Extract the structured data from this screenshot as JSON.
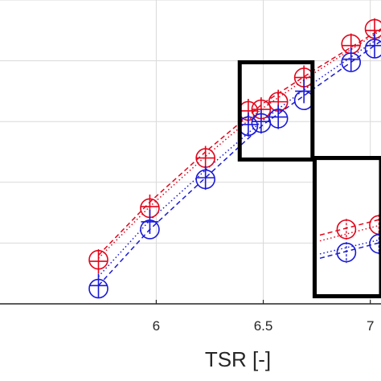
{
  "chart_data": {
    "type": "line",
    "title": "",
    "xlabel": "TSR [-]",
    "ylabel": "",
    "xlim": [
      5.27,
      7.05
    ],
    "ylim": [
      0.0,
      1.0
    ],
    "x_ticks": [
      6,
      6.5,
      7
    ],
    "x_tick_labels": [
      "6",
      "6.5",
      "7"
    ],
    "y_ticks": [
      0.2,
      0.4,
      0.6,
      0.8,
      1.0
    ],
    "grid": true,
    "colors": {
      "red": "#e2061b",
      "blue": "#1a1ad8",
      "axis": "#262626",
      "grid": "#d9d9d9",
      "box": "#000000"
    },
    "series": [
      {
        "marker": "circle",
        "color": "#e2061b",
        "points": [
          [
            5.73,
            0.145
          ],
          [
            5.97,
            0.315
          ],
          [
            6.23,
            0.48
          ],
          [
            6.43,
            0.635
          ],
          [
            6.49,
            0.64
          ],
          [
            6.57,
            0.665
          ],
          [
            6.69,
            0.745
          ],
          [
            6.91,
            0.855
          ],
          [
            7.02,
            0.905
          ]
        ]
      },
      {
        "marker": "plus",
        "color": "#e2061b",
        "points": [
          [
            5.73,
            0.14
          ],
          [
            5.97,
            0.32
          ],
          [
            6.23,
            0.48
          ],
          [
            6.43,
            0.635
          ],
          [
            6.49,
            0.64
          ],
          [
            6.57,
            0.665
          ],
          [
            6.69,
            0.745
          ],
          [
            6.91,
            0.85
          ],
          [
            7.02,
            0.9
          ]
        ]
      },
      {
        "marker": "circle",
        "color": "#1a1ad8",
        "points": [
          [
            5.73,
            0.05
          ],
          [
            5.97,
            0.245
          ],
          [
            6.23,
            0.41
          ],
          [
            6.43,
            0.585
          ],
          [
            6.49,
            0.595
          ],
          [
            6.57,
            0.61
          ],
          [
            6.69,
            0.67
          ],
          [
            6.91,
            0.795
          ],
          [
            7.02,
            0.84
          ]
        ]
      },
      {
        "marker": "plus",
        "color": "#1a1ad8",
        "points": [
          [
            5.73,
            0.06
          ],
          [
            5.97,
            0.27
          ],
          [
            6.23,
            0.415
          ],
          [
            6.43,
            0.59
          ],
          [
            6.49,
            0.6
          ],
          [
            6.57,
            0.615
          ],
          [
            6.69,
            0.7
          ],
          [
            6.91,
            0.805
          ],
          [
            7.02,
            0.85
          ]
        ]
      }
    ],
    "trend_lines": [
      {
        "color": "#e2061b",
        "style": "dashed",
        "points": [
          [
            5.73,
            0.16
          ],
          [
            5.97,
            0.335
          ],
          [
            6.23,
            0.5
          ],
          [
            6.5,
            0.66
          ],
          [
            6.75,
            0.775
          ],
          [
            7.05,
            0.905
          ]
        ]
      },
      {
        "color": "#e2061b",
        "style": "dotted",
        "points": [
          [
            5.73,
            0.15
          ],
          [
            5.97,
            0.32
          ],
          [
            6.23,
            0.485
          ],
          [
            6.5,
            0.645
          ],
          [
            6.75,
            0.765
          ],
          [
            7.05,
            0.9
          ]
        ]
      },
      {
        "color": "#1a1ad8",
        "style": "dotted",
        "points": [
          [
            5.73,
            0.09
          ],
          [
            5.97,
            0.275
          ],
          [
            6.23,
            0.44
          ],
          [
            6.5,
            0.605
          ],
          [
            6.75,
            0.735
          ],
          [
            7.05,
            0.88
          ]
        ]
      },
      {
        "color": "#1a1ad8",
        "style": "dashed",
        "points": [
          [
            5.73,
            0.06
          ],
          [
            5.97,
            0.245
          ],
          [
            6.23,
            0.415
          ],
          [
            6.5,
            0.59
          ],
          [
            6.75,
            0.715
          ],
          [
            7.05,
            0.865
          ]
        ]
      }
    ],
    "zoom_boxes": [
      {
        "x0": 6.39,
        "x1": 6.73,
        "y0": 0.475,
        "y1": 0.795
      },
      {
        "x0": 6.74,
        "x1": 7.05,
        "y0": 0.025,
        "y1": 0.48
      }
    ],
    "inset": {
      "x0": 6.74,
      "x1": 7.05,
      "y0": 0.025,
      "y1": 0.48,
      "circles": [
        {
          "color": "#e2061b",
          "points": [
            [
              6.88,
              0.245
            ],
            [
              7.04,
              0.26
            ]
          ]
        },
        {
          "color": "#1a1ad8",
          "points": [
            [
              6.88,
              0.165
            ],
            [
              7.04,
              0.195
            ]
          ]
        }
      ],
      "lines": [
        {
          "color": "#e2061b",
          "style": "dashed",
          "points": [
            [
              6.75,
              0.225
            ],
            [
              7.05,
              0.28
            ]
          ]
        },
        {
          "color": "#e2061b",
          "style": "dotted",
          "points": [
            [
              6.75,
              0.205
            ],
            [
              7.05,
              0.26
            ]
          ]
        },
        {
          "color": "#1a1ad8",
          "style": "dotted",
          "points": [
            [
              6.75,
              0.16
            ],
            [
              7.05,
              0.21
            ]
          ]
        },
        {
          "color": "#1a1ad8",
          "style": "dashed",
          "points": [
            [
              6.75,
              0.145
            ],
            [
              7.05,
              0.2
            ]
          ]
        }
      ]
    }
  }
}
